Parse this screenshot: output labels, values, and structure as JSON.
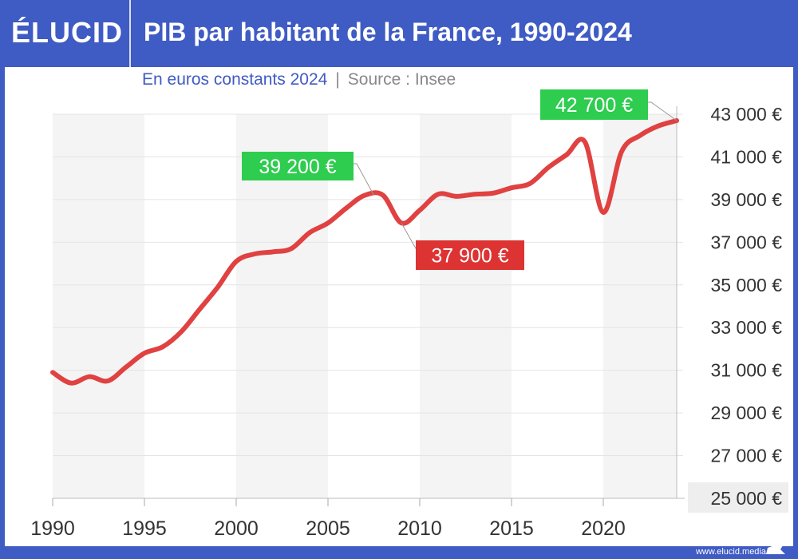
{
  "header": {
    "logo": "ÉLUCID",
    "title": "PIB par habitant de la France, 1990-2024"
  },
  "subtitle": "En euros constants 2024",
  "separator": "|",
  "source": "Source : Insee",
  "footer": "www.elucid.media",
  "colors": {
    "brand": "#3f5bc4",
    "line": "#e04141",
    "green": "#2ecc4f",
    "red": "#dd3333",
    "band": "#f4f4f4"
  },
  "chart_data": {
    "type": "line",
    "title": "PIB par habitant de la France, 1990-2024",
    "subtitle": "En euros constants 2024",
    "xlim": [
      1990,
      2024
    ],
    "ylim": [
      25000,
      43000
    ],
    "x_ticks": [
      "1990",
      "1995",
      "2000",
      "2005",
      "2010",
      "2015",
      "2020"
    ],
    "y_ticks": [
      "25 000 €",
      "27 000 €",
      "29 000 €",
      "31 000 €",
      "33 000 €",
      "35 000 €",
      "37 000 €",
      "39 000 €",
      "41 000 €",
      "43 000 €"
    ],
    "grid": true,
    "y_axis_position": "right",
    "x": [
      1990,
      1991,
      1992,
      1993,
      1994,
      1995,
      1996,
      1997,
      1998,
      1999,
      2000,
      2001,
      2002,
      2003,
      2004,
      2005,
      2006,
      2007,
      2008,
      2009,
      2010,
      2011,
      2012,
      2013,
      2014,
      2015,
      2016,
      2017,
      2018,
      2019,
      2020,
      2021,
      2022,
      2023,
      2024
    ],
    "values": [
      30900,
      30400,
      30700,
      30500,
      31150,
      31800,
      32100,
      32800,
      33850,
      34900,
      36100,
      36450,
      36550,
      36700,
      37450,
      37900,
      38600,
      39200,
      39200,
      37900,
      38500,
      39250,
      39150,
      39250,
      39300,
      39550,
      39750,
      40500,
      41100,
      41700,
      38400,
      41250,
      42000,
      42450,
      42700
    ],
    "annotations": [
      {
        "label": "39 200 €",
        "year": 2008,
        "value": 39200,
        "color": "green"
      },
      {
        "label": "37 900 €",
        "year": 2009,
        "value": 37900,
        "color": "red"
      },
      {
        "label": "42 700 €",
        "year": 2024,
        "value": 42700,
        "color": "green"
      }
    ]
  }
}
